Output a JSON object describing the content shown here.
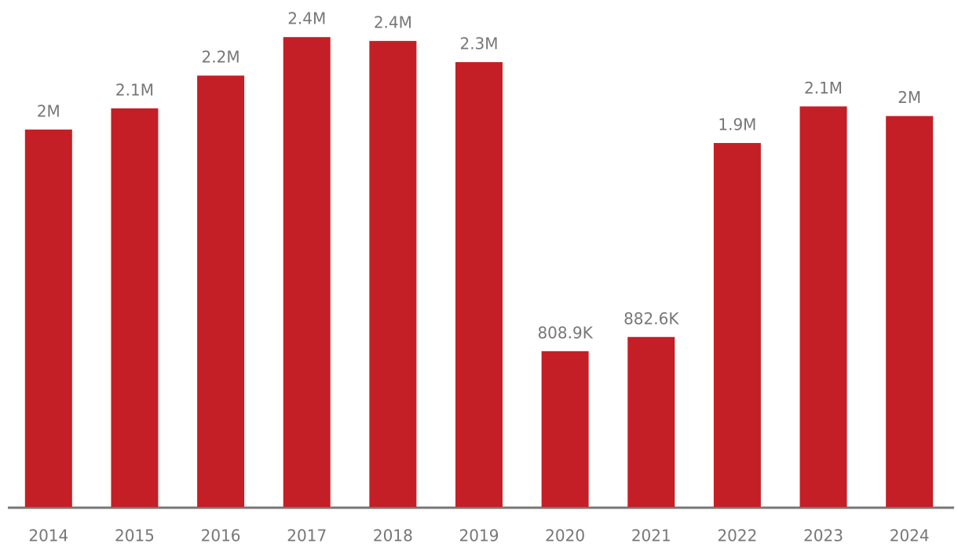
{
  "chart_data": {
    "type": "bar",
    "categories": [
      "2014",
      "2015",
      "2016",
      "2017",
      "2018",
      "2019",
      "2020",
      "2021",
      "2022",
      "2023",
      "2024"
    ],
    "values": [
      1960000,
      2070000,
      2240000,
      2440000,
      2420000,
      2310000,
      808900,
      882600,
      1890000,
      2080000,
      2030000
    ],
    "value_labels": [
      "2M",
      "2.1M",
      "2.2M",
      "2.4M",
      "2.4M",
      "2.3M",
      "808.9K",
      "882.6K",
      "1.9M",
      "2.1M",
      "2M"
    ],
    "color": "#c41f26",
    "ylim": [
      0,
      2600000
    ]
  }
}
